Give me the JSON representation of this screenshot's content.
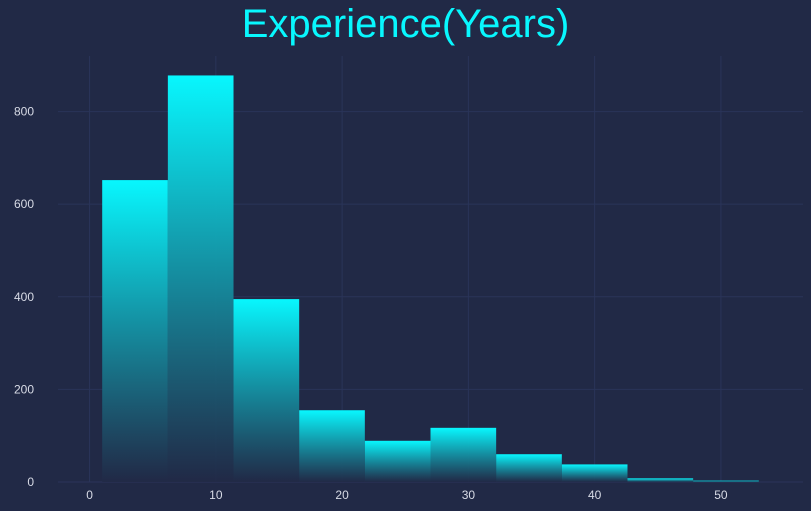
{
  "chart_data": {
    "type": "bar",
    "title": "Experience(Years)",
    "xlabel": "",
    "ylabel": "",
    "bin_edges": [
      1,
      6.2,
      11.4,
      16.6,
      21.8,
      27,
      32.2,
      37.4,
      42.6,
      47.8,
      53
    ],
    "values": [
      652,
      878,
      395,
      155,
      89,
      117,
      60,
      38,
      8,
      3
    ],
    "x_ticks": [
      0,
      10,
      20,
      30,
      40,
      50
    ],
    "y_ticks": [
      0,
      200,
      400,
      600,
      800
    ],
    "xlim": [
      -2.5,
      56.5
    ],
    "ylim": [
      0,
      920
    ],
    "grid": true,
    "colors": {
      "background": "#212946",
      "bar_top": "#08F7FE",
      "bar_bottom": "#212946",
      "grid": "#2A3459",
      "title": "#08F7FE",
      "ticks": "#d8dbe6"
    }
  }
}
